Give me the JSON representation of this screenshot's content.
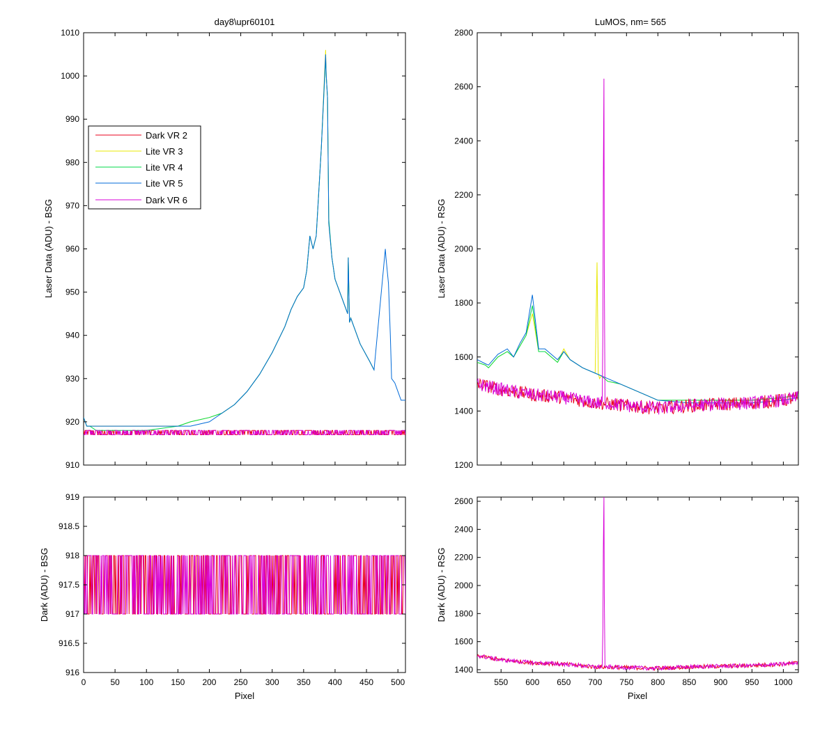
{
  "figure": {
    "background": "#ffffff",
    "series_colors": {
      "Dark VR 2": "#e8001c",
      "Lite VR 3": "#e8e800",
      "Lite VR 4": "#00d84a",
      "Lite VR 5": "#006ad8",
      "Dark VR 6": "#d800d8"
    }
  },
  "chart_data": [
    {
      "id": "bsg-laser",
      "type": "line",
      "title": "day8\\upr60101",
      "xlabel": "",
      "ylabel": "Laser Data (ADU) - BSG",
      "xlim": [
        0,
        512
      ],
      "ylim": [
        910,
        1010
      ],
      "xticks": [
        0,
        50,
        100,
        150,
        200,
        250,
        300,
        350,
        400,
        450,
        500
      ],
      "xtick_labels": [],
      "yticks": [
        910,
        920,
        930,
        940,
        950,
        960,
        970,
        980,
        990,
        1000,
        1010
      ],
      "grid": false,
      "legend_position": "upper-left",
      "series": [
        {
          "name": "Dark VR 2",
          "color": "#e8001c",
          "noise": true,
          "x": [
            0,
            512
          ],
          "y": [
            918,
            918
          ],
          "noise_low": 917,
          "noise_high": 918
        },
        {
          "name": "Lite VR 3",
          "color": "#e8e800",
          "x": [
            0,
            5,
            10,
            20,
            50,
            100,
            150,
            170,
            200,
            220,
            240,
            260,
            280,
            300,
            320,
            330,
            340,
            350,
            355,
            360,
            365,
            370,
            378,
            385,
            386,
            388,
            390,
            395,
            400,
            410,
            420,
            421,
            423,
            425,
            440,
            455,
            462
          ],
          "y": [
            921,
            919,
            919,
            919,
            919,
            919,
            919,
            920,
            921,
            922,
            924,
            927,
            931,
            936,
            942,
            946,
            949,
            951,
            955,
            963,
            960,
            963,
            983,
            1006,
            1000,
            995,
            966,
            958,
            953,
            949,
            945,
            958,
            943,
            944,
            938,
            934,
            932
          ]
        },
        {
          "name": "Lite VR 4",
          "color": "#00d84a",
          "x": [
            0,
            5,
            10,
            20,
            50,
            100,
            150,
            170,
            200,
            220,
            240,
            260,
            280,
            300,
            320,
            330,
            340,
            350,
            355,
            360,
            365,
            370,
            378,
            385,
            386,
            388,
            390,
            395,
            400,
            410,
            420,
            421,
            423,
            425,
            440,
            455,
            462
          ],
          "y": [
            921,
            919,
            919,
            918,
            918,
            918,
            919,
            920,
            921,
            922,
            924,
            927,
            931,
            936,
            942,
            946,
            949,
            951,
            955,
            963,
            960,
            963,
            983,
            1004,
            1000,
            995,
            967,
            958,
            953,
            949,
            945,
            958,
            943,
            944,
            938,
            934,
            932
          ]
        },
        {
          "name": "Lite VR 5",
          "color": "#006ad8",
          "x": [
            0,
            5,
            10,
            20,
            50,
            100,
            150,
            170,
            200,
            220,
            240,
            260,
            280,
            300,
            320,
            330,
            340,
            350,
            355,
            360,
            365,
            370,
            378,
            385,
            386,
            388,
            390,
            395,
            400,
            410,
            420,
            421,
            423,
            425,
            440,
            455,
            462,
            480,
            481,
            485,
            488,
            490,
            495,
            500,
            505,
            512
          ],
          "y": [
            921,
            919,
            919,
            919,
            919,
            919,
            919,
            919,
            920,
            922,
            924,
            927,
            931,
            936,
            942,
            946,
            949,
            951,
            955,
            963,
            960,
            963,
            983,
            1005,
            1000,
            995,
            966,
            958,
            953,
            949,
            945,
            958,
            943,
            944,
            938,
            934,
            932,
            960,
            958,
            952,
            940,
            930,
            929,
            927,
            925,
            925
          ]
        },
        {
          "name": "Dark VR 6",
          "color": "#d800d8",
          "noise": true,
          "x": [
            0,
            512
          ],
          "y": [
            918,
            918
          ],
          "noise_low": 917,
          "noise_high": 918
        }
      ]
    },
    {
      "id": "bsg-dark",
      "type": "line",
      "title": "",
      "xlabel": "Pixel",
      "ylabel": "Dark (ADU) - BSG",
      "xlim": [
        0,
        512
      ],
      "ylim": [
        916,
        919
      ],
      "xticks": [
        0,
        50,
        100,
        150,
        200,
        250,
        300,
        350,
        400,
        450,
        500
      ],
      "xtick_labels": [
        "0",
        "50",
        "100",
        "150",
        "200",
        "250",
        "300",
        "350",
        "400",
        "450",
        "500"
      ],
      "yticks": [
        916,
        916.5,
        917,
        917.5,
        918,
        918.5,
        919
      ],
      "grid": false,
      "series": [
        {
          "name": "Dark VR 2",
          "color": "#e8001c",
          "noise": true,
          "x": [
            0,
            512
          ],
          "y": [
            918,
            918
          ],
          "noise_low": 917,
          "noise_high": 918
        },
        {
          "name": "Dark VR 6",
          "color": "#d800d8",
          "noise": true,
          "x": [
            0,
            512
          ],
          "y": [
            918,
            918
          ],
          "noise_low": 917,
          "noise_high": 918
        }
      ]
    },
    {
      "id": "rsg-laser",
      "type": "line",
      "title": "LuMOS, nm= 565",
      "xlabel": "",
      "ylabel": "Laser Data (ADU) - RSG",
      "xlim": [
        512,
        1024
      ],
      "ylim": [
        1200,
        2800
      ],
      "xticks": [
        550,
        600,
        650,
        700,
        750,
        800,
        850,
        900,
        950,
        1000
      ],
      "xtick_labels": [],
      "yticks": [
        1200,
        1400,
        1600,
        1800,
        2000,
        2200,
        2400,
        2600,
        2800
      ],
      "grid": false,
      "series": [
        {
          "name": "Lite VR 3",
          "color": "#e8e800",
          "x": [
            512,
            525,
            530,
            545,
            560,
            570,
            580,
            590,
            600,
            610,
            620,
            640,
            650,
            660,
            680,
            700,
            703,
            705,
            707,
            710,
            720,
            740,
            760,
            780,
            800,
            850,
            900,
            950,
            1000,
            1024
          ],
          "y": [
            1580,
            1570,
            1560,
            1600,
            1620,
            1600,
            1640,
            1680,
            1760,
            1620,
            1620,
            1580,
            1630,
            1590,
            1560,
            1540,
            1950,
            1540,
            1520,
            1530,
            1510,
            1500,
            1480,
            1460,
            1440,
            1440,
            1440,
            1440,
            1450,
            1460
          ]
        },
        {
          "name": "Lite VR 4",
          "color": "#00d84a",
          "x": [
            512,
            525,
            530,
            545,
            560,
            570,
            580,
            590,
            600,
            610,
            620,
            640,
            650,
            660,
            680,
            700,
            710,
            720,
            740,
            760,
            780,
            800,
            850,
            900,
            950,
            1000,
            1024
          ],
          "y": [
            1580,
            1570,
            1560,
            1600,
            1620,
            1600,
            1640,
            1680,
            1790,
            1620,
            1620,
            1580,
            1620,
            1590,
            1560,
            1540,
            1530,
            1510,
            1500,
            1480,
            1460,
            1440,
            1440,
            1440,
            1440,
            1450,
            1460
          ]
        },
        {
          "name": "Lite VR 5",
          "color": "#006ad8",
          "x": [
            512,
            525,
            530,
            545,
            560,
            570,
            580,
            590,
            600,
            610,
            620,
            640,
            650,
            660,
            680,
            700,
            710,
            720,
            740,
            760,
            780,
            800,
            850,
            900,
            950,
            1000,
            1024
          ],
          "y": [
            1590,
            1575,
            1570,
            1610,
            1630,
            1600,
            1650,
            1690,
            1830,
            1630,
            1630,
            1590,
            1620,
            1590,
            1560,
            1540,
            1530,
            1520,
            1500,
            1480,
            1460,
            1440,
            1430,
            1430,
            1430,
            1440,
            1450
          ]
        },
        {
          "name": "Dark VR 2",
          "color": "#e8001c",
          "noise": true,
          "x": [
            512,
            550,
            600,
            650,
            700,
            750,
            800,
            850,
            900,
            950,
            1000,
            1024
          ],
          "y": [
            1500,
            1480,
            1460,
            1450,
            1430,
            1420,
            1410,
            1420,
            1425,
            1430,
            1440,
            1450
          ],
          "noise_low": -25,
          "noise_high": 25
        },
        {
          "name": "Dark VR 6",
          "color": "#d800d8",
          "noise": true,
          "x": [
            512,
            550,
            600,
            650,
            700,
            712,
            713,
            714,
            715,
            716,
            750,
            800,
            850,
            900,
            950,
            1000,
            1024
          ],
          "y": [
            1500,
            1480,
            1460,
            1450,
            1430,
            1430,
            2240,
            2630,
            1430,
            1430,
            1420,
            1410,
            1420,
            1425,
            1430,
            1440,
            1450
          ],
          "noise_low": -25,
          "noise_high": 25
        }
      ]
    },
    {
      "id": "rsg-dark",
      "type": "line",
      "title": "",
      "xlabel": "Pixel",
      "ylabel": "Dark (ADU) - RSG",
      "xlim": [
        512,
        1024
      ],
      "ylim": [
        1380,
        2630
      ],
      "xticks": [
        550,
        600,
        650,
        700,
        750,
        800,
        850,
        900,
        950,
        1000
      ],
      "xtick_labels": [
        "550",
        "600",
        "650",
        "700",
        "750",
        "800",
        "850",
        "900",
        "950",
        "1000"
      ],
      "yticks": [
        1400,
        1600,
        1800,
        2000,
        2200,
        2400,
        2600
      ],
      "grid": false,
      "series": [
        {
          "name": "Dark VR 2",
          "color": "#e8001c",
          "noise": true,
          "x": [
            512,
            550,
            600,
            650,
            700,
            750,
            800,
            850,
            900,
            950,
            1000,
            1024
          ],
          "y": [
            1500,
            1470,
            1450,
            1440,
            1420,
            1415,
            1410,
            1420,
            1425,
            1430,
            1440,
            1450
          ],
          "noise_low": -15,
          "noise_high": 15
        },
        {
          "name": "Dark VR 6",
          "color": "#d800d8",
          "noise": true,
          "x": [
            512,
            550,
            600,
            650,
            700,
            712,
            713,
            714,
            715,
            716,
            750,
            800,
            850,
            900,
            950,
            1000,
            1024
          ],
          "y": [
            1500,
            1470,
            1450,
            1440,
            1420,
            1420,
            2240,
            2630,
            1420,
            1420,
            1415,
            1410,
            1420,
            1425,
            1430,
            1440,
            1450
          ],
          "noise_low": -15,
          "noise_high": 15
        }
      ]
    }
  ],
  "legend": {
    "entries": [
      "Dark VR 2",
      "Lite VR 3",
      "Lite VR 4",
      "Lite VR 5",
      "Dark VR 6"
    ]
  }
}
